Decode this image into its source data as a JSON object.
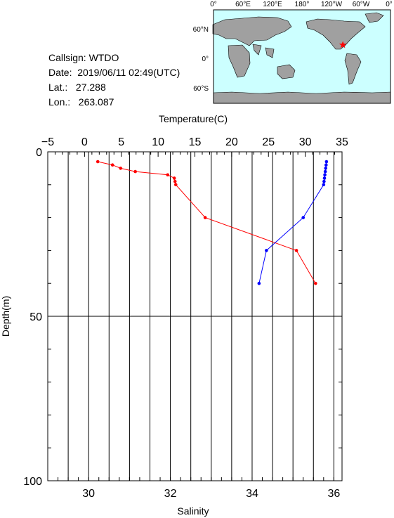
{
  "header": {
    "callsign": "Callsign: WTDO",
    "date": "Date:  2019/06/11 02:49(UTC)",
    "lat": "Lat.:   27.288",
    "lon": "Lon.:   263.087"
  },
  "map": {
    "lon_ticks": [
      "0°",
      "60°E",
      "120°E",
      "180°",
      "120°W",
      "60°W",
      "0°"
    ],
    "lat_ticks": [
      "60°N",
      "0°",
      "60°S"
    ],
    "ocean_color": "#ccffff",
    "land_color": "#a0a0a0",
    "marker_color": "#ff0000",
    "marker_icon": "star-icon",
    "marker_lon": 263.087,
    "marker_lat": 27.288
  },
  "chart_data": {
    "type": "line",
    "top_axis_label": "Temperature(C)",
    "bottom_axis_label": "Salinity",
    "ylabel": "Depth(m)",
    "temperature_ticks": [
      "−5",
      "0",
      "5",
      "10",
      "15",
      "20",
      "25",
      "30",
      "35"
    ],
    "salinity_ticks": [
      "30",
      "32",
      "34",
      "36"
    ],
    "depth_ticks": [
      "0",
      "50",
      "100"
    ],
    "temperature_range": [
      -5,
      35
    ],
    "salinity_range": [
      29,
      36.2
    ],
    "depth_range": [
      0,
      100
    ],
    "series": [
      {
        "color": "#ff0000",
        "points": [
          {
            "depth": 3,
            "temp": 1.8
          },
          {
            "depth": 4,
            "temp": 3.8
          },
          {
            "depth": 5,
            "temp": 4.9
          },
          {
            "depth": 6,
            "temp": 6.9
          },
          {
            "depth": 7,
            "temp": 11.3
          },
          {
            "depth": 8,
            "temp": 12.2
          },
          {
            "depth": 9,
            "temp": 12.3
          },
          {
            "depth": 10,
            "temp": 12.4
          },
          {
            "depth": 20,
            "temp": 16.4
          },
          {
            "depth": 30,
            "temp": 28.8
          },
          {
            "depth": 40,
            "temp": 31.4
          }
        ]
      },
      {
        "color": "#0000ff",
        "points": [
          {
            "depth": 3,
            "sal": 35.82
          },
          {
            "depth": 4,
            "sal": 35.81
          },
          {
            "depth": 5,
            "sal": 35.8
          },
          {
            "depth": 6,
            "sal": 35.79
          },
          {
            "depth": 7,
            "sal": 35.78
          },
          {
            "depth": 8,
            "sal": 35.77
          },
          {
            "depth": 9,
            "sal": 35.76
          },
          {
            "depth": 10,
            "sal": 35.75
          },
          {
            "depth": 20,
            "sal": 35.25
          },
          {
            "depth": 30,
            "sal": 34.35
          },
          {
            "depth": 40,
            "sal": 34.17
          }
        ]
      }
    ]
  }
}
